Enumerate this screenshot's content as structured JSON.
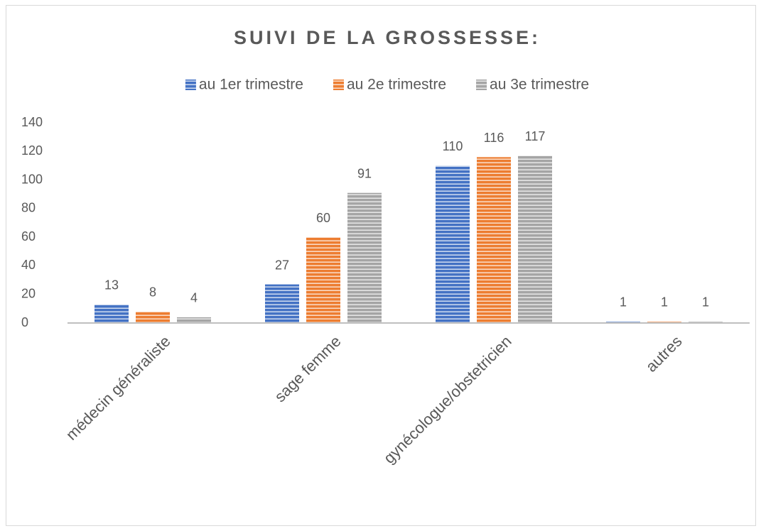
{
  "chart_data": {
    "type": "bar",
    "title": "SUIVI DE LA GROSSESSE:",
    "categories": [
      "médecin généraliste",
      "sage femme",
      "gynécologue/obstetricien",
      "autres"
    ],
    "series": [
      {
        "name": "au 1er trimestre",
        "color": "#4472c4",
        "values": [
          13,
          27,
          110,
          1
        ]
      },
      {
        "name": "au 2e trimestre",
        "color": "#ed7d31",
        "values": [
          8,
          60,
          116,
          1
        ]
      },
      {
        "name": "au 3e trimestre",
        "color": "#a5a5a5",
        "values": [
          4,
          91,
          117,
          1
        ]
      }
    ],
    "ylim": [
      0,
      140
    ],
    "yticks": [
      0,
      20,
      40,
      60,
      80,
      100,
      120,
      140
    ],
    "grid": false,
    "legend": "top"
  }
}
